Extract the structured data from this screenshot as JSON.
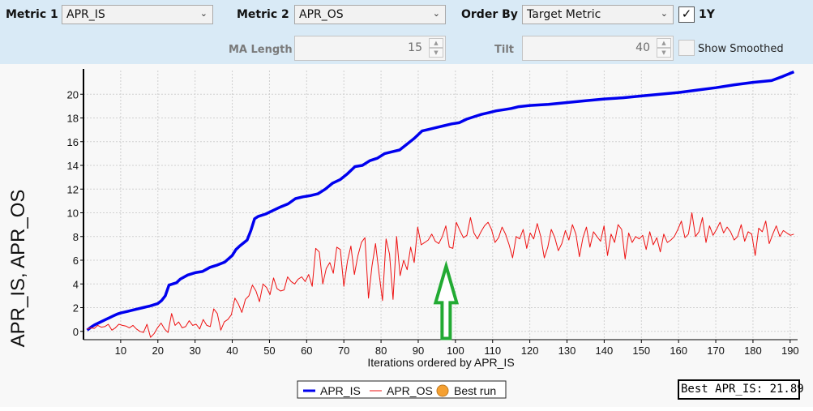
{
  "toolbar": {
    "metric1_label": "Metric 1",
    "metric1_value": "APR_IS",
    "metric2_label": "Metric 2",
    "metric2_value": "APR_OS",
    "orderby_label": "Order By",
    "orderby_value": "Target Metric",
    "oney_label": "1Y",
    "oney_checked": true,
    "ma_label": "MA Length",
    "ma_value": "15",
    "tilt_label": "Tilt",
    "tilt_value": "40",
    "smoothed_label": "Show Smoothed",
    "smoothed_checked": false
  },
  "chart_data": {
    "type": "line",
    "ylabel": "APR_IS, APR_OS",
    "xlabel": "Iterations ordered by APR_IS",
    "xlim": [
      0,
      192
    ],
    "ylim": [
      -0.7,
      22
    ],
    "xticks": [
      10,
      20,
      30,
      40,
      50,
      60,
      70,
      80,
      90,
      100,
      110,
      120,
      130,
      140,
      150,
      160,
      170,
      180,
      190
    ],
    "yticks": [
      0,
      2,
      4,
      6,
      8,
      10,
      12,
      14,
      16,
      18,
      20
    ],
    "grid": true,
    "legend_position": "bottom",
    "series": [
      {
        "name": "APR_IS",
        "color": "#0000ee",
        "points": [
          [
            1,
            0.1
          ],
          [
            2,
            0.35
          ],
          [
            3,
            0.55
          ],
          [
            4,
            0.7
          ],
          [
            5,
            0.85
          ],
          [
            6,
            1.0
          ],
          [
            7,
            1.15
          ],
          [
            8,
            1.3
          ],
          [
            9,
            1.45
          ],
          [
            10,
            1.55
          ],
          [
            12,
            1.7
          ],
          [
            14,
            1.85
          ],
          [
            16,
            2.0
          ],
          [
            18,
            2.15
          ],
          [
            20,
            2.35
          ],
          [
            21,
            2.6
          ],
          [
            22,
            3.0
          ],
          [
            23,
            3.9
          ],
          [
            25,
            4.1
          ],
          [
            26,
            4.4
          ],
          [
            28,
            4.75
          ],
          [
            30,
            4.95
          ],
          [
            32,
            5.05
          ],
          [
            34,
            5.4
          ],
          [
            36,
            5.6
          ],
          [
            38,
            5.85
          ],
          [
            40,
            6.4
          ],
          [
            41,
            6.9
          ],
          [
            42,
            7.2
          ],
          [
            44,
            7.7
          ],
          [
            45,
            8.5
          ],
          [
            46,
            9.5
          ],
          [
            47,
            9.7
          ],
          [
            49,
            9.9
          ],
          [
            51,
            10.2
          ],
          [
            53,
            10.5
          ],
          [
            55,
            10.75
          ],
          [
            57,
            11.2
          ],
          [
            59,
            11.35
          ],
          [
            61,
            11.45
          ],
          [
            63,
            11.6
          ],
          [
            65,
            12.0
          ],
          [
            67,
            12.5
          ],
          [
            69,
            12.8
          ],
          [
            71,
            13.3
          ],
          [
            73,
            13.9
          ],
          [
            75,
            14.0
          ],
          [
            77,
            14.4
          ],
          [
            79,
            14.6
          ],
          [
            81,
            15.0
          ],
          [
            83,
            15.15
          ],
          [
            85,
            15.3
          ],
          [
            87,
            15.8
          ],
          [
            89,
            16.3
          ],
          [
            91,
            16.9
          ],
          [
            93,
            17.05
          ],
          [
            95,
            17.2
          ],
          [
            97,
            17.35
          ],
          [
            99,
            17.5
          ],
          [
            101,
            17.6
          ],
          [
            103,
            17.9
          ],
          [
            105,
            18.1
          ],
          [
            107,
            18.3
          ],
          [
            109,
            18.45
          ],
          [
            111,
            18.6
          ],
          [
            113,
            18.7
          ],
          [
            115,
            18.8
          ],
          [
            117,
            18.95
          ],
          [
            120,
            19.05
          ],
          [
            125,
            19.15
          ],
          [
            130,
            19.3
          ],
          [
            135,
            19.45
          ],
          [
            140,
            19.6
          ],
          [
            145,
            19.7
          ],
          [
            150,
            19.85
          ],
          [
            155,
            20.0
          ],
          [
            160,
            20.15
          ],
          [
            165,
            20.35
          ],
          [
            170,
            20.55
          ],
          [
            175,
            20.8
          ],
          [
            180,
            21.0
          ],
          [
            185,
            21.15
          ],
          [
            188,
            21.5
          ],
          [
            191,
            21.89
          ]
        ]
      },
      {
        "name": "APR_OS",
        "color": "#ee1111",
        "values": [
          0.2,
          0.3,
          0.25,
          0.5,
          0.35,
          0.4,
          0.6,
          0.1,
          0.3,
          0.6,
          0.5,
          0.45,
          0.3,
          0.5,
          0.2,
          0.0,
          -0.1,
          0.6,
          -0.5,
          -0.2,
          0.3,
          0.7,
          0.2,
          -0.1,
          1.5,
          0.5,
          0.8,
          0.3,
          0.4,
          0.9,
          0.5,
          0.6,
          0.2,
          1.0,
          0.5,
          0.4,
          1.9,
          1.5,
          0.1,
          0.8,
          1.0,
          1.4,
          2.8,
          2.3,
          1.6,
          2.7,
          3.0,
          3.9,
          3.4,
          2.5,
          4.0,
          3.7,
          3.1,
          4.5,
          3.6,
          3.4,
          3.5,
          4.6,
          4.2,
          4.0,
          4.4,
          4.6,
          4.2,
          4.8,
          3.8,
          7.0,
          6.7,
          4.0,
          5.3,
          5.8,
          4.9,
          7.1,
          6.9,
          3.8,
          5.9,
          7.2,
          4.8,
          6.4,
          7.5,
          7.9,
          2.8,
          5.5,
          7.4,
          4.9,
          2.6,
          7.8,
          6.5,
          2.7,
          8.0,
          4.7,
          6.0,
          5.2,
          7.1,
          5.8,
          8.8,
          7.3,
          7.5,
          7.7,
          8.2,
          7.6,
          7.4,
          8.0,
          8.9,
          7.1,
          7.0,
          9.2,
          8.5,
          7.9,
          8.1,
          9.6,
          8.3,
          7.8,
          8.4,
          8.9,
          9.2,
          8.6,
          7.5,
          7.9,
          8.8,
          8.2,
          7.3,
          6.2,
          8.0,
          7.8,
          8.6,
          7.0,
          8.3,
          7.8,
          9.1,
          8.0,
          6.2,
          7.1,
          8.6,
          7.9,
          6.8,
          7.4,
          8.5,
          7.7,
          9.0,
          8.2,
          6.3,
          7.9,
          8.8,
          7.1,
          8.4,
          8.0,
          7.6,
          8.9,
          6.4,
          8.2,
          7.5,
          9.0,
          8.6,
          6.1,
          8.3,
          7.5,
          8.0,
          7.8,
          8.1,
          6.9,
          8.4,
          7.3,
          7.9,
          6.7,
          8.2,
          7.5,
          7.7,
          8.0,
          8.6,
          9.3,
          7.9,
          8.2,
          10.0,
          8.0,
          8.4,
          9.6,
          7.5,
          8.9,
          8.1,
          8.6,
          9.2,
          8.3,
          8.8,
          8.4,
          7.7,
          8.0,
          9.0,
          7.6,
          8.4,
          8.2,
          6.4,
          8.7,
          8.4,
          9.3,
          7.4,
          8.2,
          8.9,
          8.0,
          8.5,
          8.3,
          8.1,
          8.2
        ]
      },
      {
        "name": "Best run",
        "color": "#f5a031"
      }
    ],
    "annotation": "green-up-arrow"
  },
  "best_text": "Best APR_IS: 21.89"
}
